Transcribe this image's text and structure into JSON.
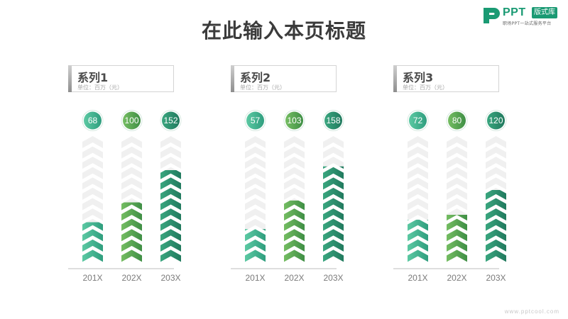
{
  "page": {
    "title": "在此输入本页标题",
    "footer_url": "www.pptcool.com"
  },
  "logo": {
    "brand": "PPT",
    "badge": "版式库",
    "tagline": "职场PPT一站式服务平台",
    "icon": "ppt-p-logo-icon"
  },
  "colors": {
    "teal_light": "#5cc9a3",
    "teal_dark": "#2f9e7e",
    "green_light": "#75bd62",
    "green_dark": "#3f8f45",
    "deep_light": "#3aa67f",
    "deep_dark": "#217a5e",
    "empty_chevron": "#f0f0f0"
  },
  "chart_data": [
    {
      "type": "bar",
      "title": "系列1",
      "unit": "单位：百万（元）",
      "categories": [
        "201X",
        "202X",
        "203X"
      ],
      "values": [
        68,
        100,
        152
      ],
      "ylim": [
        0,
        200
      ]
    },
    {
      "type": "bar",
      "title": "系列2",
      "unit": "单位：百万（元）",
      "categories": [
        "201X",
        "202X",
        "203X"
      ],
      "values": [
        57,
        103,
        158
      ],
      "ylim": [
        0,
        200
      ]
    },
    {
      "type": "bar",
      "title": "系列3",
      "unit": "单位：百万（元）",
      "categories": [
        "201X",
        "202X",
        "203X"
      ],
      "values": [
        72,
        80,
        120
      ],
      "ylim": [
        0,
        200
      ]
    }
  ]
}
